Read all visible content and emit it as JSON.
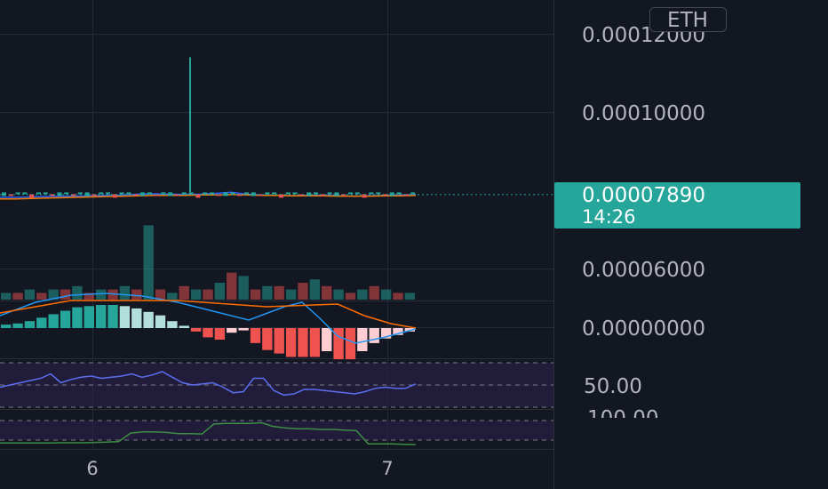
{
  "symbol_badge": "ETH",
  "price_tag": {
    "value": "0.00007890",
    "countdown": "14:26",
    "color": "#26a69a"
  },
  "colors": {
    "background": "#131722",
    "grid": "#242a36",
    "separator": "#2a2e39",
    "up": "#26a69a",
    "down": "#ef5350",
    "ma_blue": "#2962ff",
    "ma_orange": "#f57c00",
    "macd_line": "#2196f3",
    "signal_line": "#ff6d00",
    "rsi_line": "#5b6ef0",
    "rsi_band": "#2a1f4a",
    "second_line": "#3e8c45"
  },
  "chart_data": [
    {
      "type": "line",
      "panel": "price",
      "y_tick_labels": [
        "0.00012000",
        "0.00010000",
        "0.00006000"
      ],
      "ylim": [
        5e-05,
        0.000125
      ],
      "last_price": 7.89e-05,
      "series": [
        {
          "values": [
            7.82,
            7.82,
            7.83,
            7.84,
            7.85,
            7.85,
            7.86,
            7.87,
            7.88,
            7.9,
            7.91,
            7.9,
            7.89,
            7.9,
            7.92,
            7.95,
            7.9,
            7.88,
            7.87,
            7.86,
            7.87,
            7.88,
            7.86,
            7.85,
            7.86,
            7.87,
            7.88,
            7.89
          ]
        },
        {
          "values": [
            7.78,
            7.78,
            7.79,
            7.8,
            7.81,
            7.82,
            7.83,
            7.84,
            7.85,
            7.86,
            7.87,
            7.87,
            7.87,
            7.88,
            7.88,
            7.89,
            7.88,
            7.87,
            7.87,
            7.86,
            7.86,
            7.86,
            7.85,
            7.85,
            7.85,
            7.86,
            7.86,
            7.87
          ]
        }
      ],
      "spike": {
        "x": "6",
        "high": 0.000114,
        "low": 7.95e-05
      },
      "volume": [
        2,
        2,
        3,
        2,
        3,
        3,
        4,
        2,
        3,
        3,
        4,
        3,
        22,
        3,
        2,
        4,
        3,
        3,
        5,
        8,
        7,
        3,
        4,
        4,
        3,
        5,
        6,
        4,
        3,
        2,
        3,
        4,
        3,
        2,
        2
      ]
    },
    {
      "type": "bar",
      "panel": "macd",
      "y_tick_labels": [
        "0.00000000"
      ],
      "histogram": [
        0.3,
        0.4,
        0.6,
        0.9,
        1.2,
        1.5,
        1.8,
        1.9,
        2.0,
        2.0,
        1.9,
        1.7,
        1.4,
        1.1,
        0.6,
        0.2,
        -0.3,
        -0.8,
        -1.0,
        -0.4,
        -0.2,
        -1.3,
        -1.9,
        -2.2,
        -2.5,
        -2.5,
        -2.5,
        -2.0,
        -2.7,
        -2.7,
        -2.0,
        -1.3,
        -0.9,
        -0.6,
        -0.3
      ]
    },
    {
      "type": "line",
      "panel": "rsi",
      "y_tick_labels": [
        "50.00"
      ],
      "values": [
        48,
        50,
        52,
        54,
        56,
        60,
        52,
        55,
        57,
        58,
        56,
        57,
        58,
        60,
        57,
        59,
        62,
        57,
        52,
        50,
        51,
        52,
        48,
        43,
        44,
        56,
        56,
        45,
        41,
        42,
        46,
        46,
        45,
        44,
        43,
        42,
        44,
        47,
        48,
        47,
        47,
        51
      ]
    },
    {
      "type": "line",
      "panel": "second-oscillator",
      "y_tick_labels": [
        "100.00"
      ],
      "values": [
        5,
        5,
        5,
        5,
        5,
        6,
        6,
        6,
        7,
        8,
        10,
        38,
        42,
        42,
        40,
        36,
        36,
        35,
        68,
        70,
        70,
        70,
        72,
        60,
        55,
        52,
        52,
        50,
        50,
        48,
        46,
        2,
        2,
        2,
        1,
        0
      ]
    }
  ],
  "x_tick_labels": [
    "6",
    "7"
  ]
}
